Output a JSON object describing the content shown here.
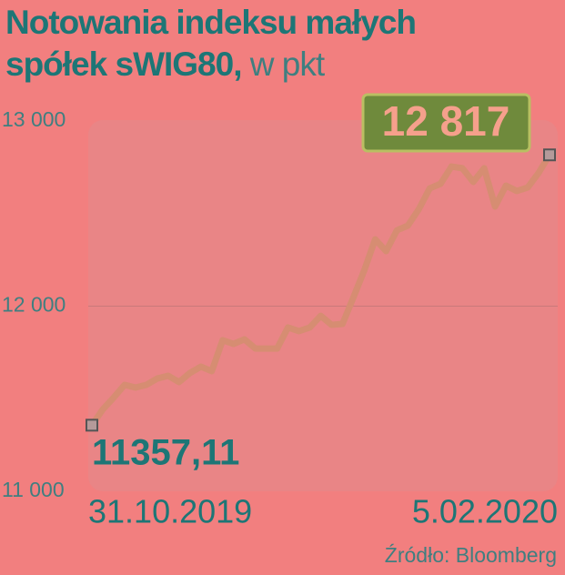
{
  "chart_data": {
    "type": "line",
    "title": "Notowania indeksu małych spółek sWIG80,",
    "unit": "w pkt",
    "source": "Źródło: Bloomberg",
    "categories": [
      "31.10.2019",
      null,
      null,
      null,
      null,
      null,
      null,
      null,
      null,
      null,
      null,
      null,
      null,
      null,
      null,
      null,
      null,
      null,
      null,
      null,
      null,
      null,
      null,
      null,
      null,
      null,
      null,
      null,
      null,
      null,
      null,
      null,
      null,
      null,
      null,
      null,
      null,
      null,
      null,
      null,
      null,
      null,
      "5.02.2020"
    ],
    "series": [
      {
        "name": "sWIG80",
        "color": "#d68d72",
        "values": [
          11357.11,
          11442,
          11506,
          11575,
          11560,
          11575,
          11609,
          11624,
          11590,
          11639,
          11673,
          11649,
          11816,
          11796,
          11821,
          11771,
          11771,
          11771,
          11885,
          11865,
          11885,
          11948,
          11899,
          11904,
          12047,
          12194,
          12361,
          12297,
          12410,
          12435,
          12523,
          12636,
          12661,
          12754,
          12745,
          12671,
          12745,
          12538,
          12651,
          12622,
          12641,
          12720,
          12817
        ],
        "value_labels": [
          "11357,11",
          null,
          null,
          null,
          null,
          null,
          null,
          null,
          null,
          null,
          null,
          null,
          null,
          null,
          null,
          null,
          null,
          null,
          null,
          null,
          null,
          null,
          null,
          null,
          null,
          null,
          null,
          null,
          null,
          null,
          null,
          null,
          null,
          null,
          null,
          null,
          null,
          null,
          null,
          null,
          null,
          null,
          "12 817"
        ]
      }
    ],
    "ylim": [
      11000,
      13000
    ],
    "yticks": [
      {
        "value": 11000,
        "label": "11 000"
      },
      {
        "value": 12000,
        "label": "12 000"
      },
      {
        "value": 13000,
        "label": "13 000"
      }
    ],
    "grid": true
  }
}
